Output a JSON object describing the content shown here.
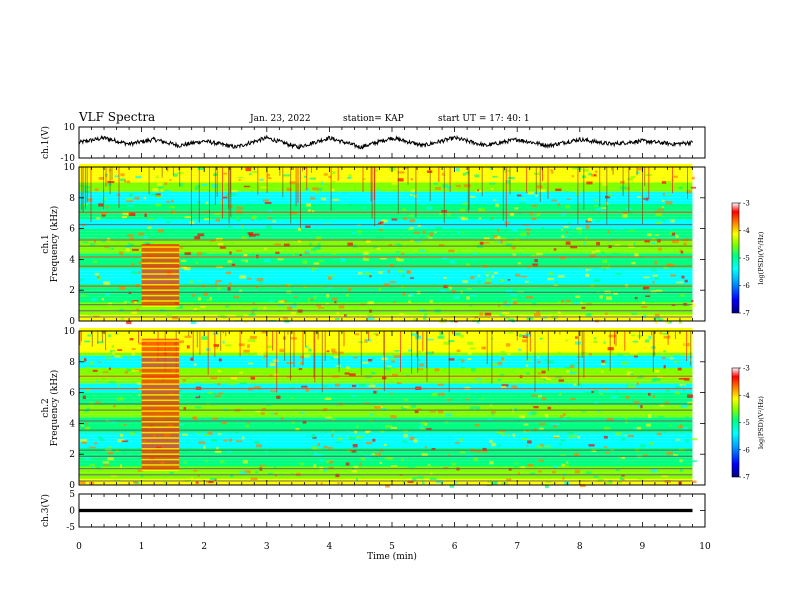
{
  "header": {
    "title": "VLF Spectra",
    "date": "Jan. 23, 2022",
    "station": "station= KAP",
    "start": "start UT =  17: 40: 1"
  },
  "colors": {
    "background": "#ffffff",
    "axis": "#000000",
    "colormap": [
      "#000080",
      "#0000ff",
      "#00a0ff",
      "#00ffff",
      "#00ff80",
      "#80ff00",
      "#ffff00",
      "#ff8000",
      "#ff0000",
      "#ffffff"
    ]
  },
  "chart_data": [
    {
      "type": "line",
      "ylabel": "ch.1(V)",
      "ylim": [
        -10,
        10
      ],
      "yticks": [
        "10",
        "-10"
      ],
      "x_range_min": [
        0,
        9.8
      ],
      "series": [
        {
          "x": [
            0,
            0.4,
            0.8,
            1.2,
            1.6,
            2.0,
            2.5,
            3.0,
            3.5,
            4.0,
            4.5,
            5.0,
            5.5,
            6.0,
            6.5,
            7.0,
            7.5,
            8.0,
            8.5,
            9.0,
            9.5,
            9.8
          ],
          "y": [
            0,
            3,
            -1,
            2,
            -2,
            1,
            -3,
            3,
            -3,
            3,
            -3,
            3,
            -2,
            3,
            -2,
            2,
            -2,
            2,
            -1,
            1,
            -1,
            0
          ]
        }
      ]
    },
    {
      "type": "heatmap",
      "ylabel": "ch.1\nFrequency (kHz)",
      "ylim": [
        0,
        10
      ],
      "yticks": [
        "0",
        "2",
        "4",
        "6",
        "8",
        "10"
      ],
      "colorbar": {
        "label": "log(PSD)(V²/Hz)",
        "range": [
          -7,
          -3
        ],
        "ticks": [
          "-3",
          "-4",
          "-5",
          "-6",
          "-7"
        ]
      },
      "notable": {
        "strong_band_x_min": [
          1.0,
          1.6
        ],
        "strong_band_y_khz": [
          1.0,
          5.0
        ]
      }
    },
    {
      "type": "heatmap",
      "ylabel": "ch.2\nFrequency (kHz)",
      "ylim": [
        0,
        10
      ],
      "yticks": [
        "0",
        "2",
        "4",
        "6",
        "8",
        "10"
      ],
      "colorbar": {
        "label": "log(PSD)(V²/Hz)",
        "range": [
          -7,
          -3
        ],
        "ticks": [
          "-3",
          "-4",
          "-5",
          "-6",
          "-7"
        ]
      },
      "notable": {
        "strong_band_x_min": [
          1.0,
          1.6
        ],
        "strong_band_y_khz": [
          1.0,
          9.5
        ]
      }
    },
    {
      "type": "line",
      "ylabel": "ch.3(V)",
      "ylim": [
        -5,
        5
      ],
      "yticks": [
        "5",
        "0",
        "-5"
      ],
      "series": [
        {
          "x": [
            0,
            9.8
          ],
          "y": [
            0,
            0
          ]
        }
      ]
    }
  ],
  "xaxis": {
    "label": "Time (min)",
    "ticks": [
      "0",
      "1",
      "2",
      "3",
      "4",
      "5",
      "6",
      "7",
      "8",
      "9",
      "10"
    ],
    "range": [
      0,
      10
    ]
  }
}
